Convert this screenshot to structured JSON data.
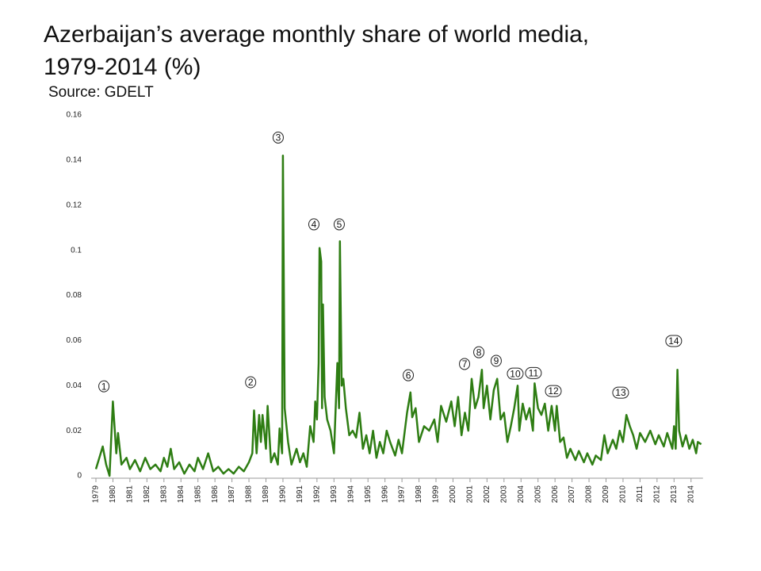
{
  "chart_data": {
    "type": "line",
    "title": "Azerbaijan’s average monthly share of world media,",
    "title_line2": "1979-2014 (%)",
    "subtitle": "Source: GDELT",
    "color": "#2e7d13",
    "xlim": [
      1979,
      2014.7
    ],
    "xticks": [
      1979,
      1980,
      1981,
      1982,
      1983,
      1984,
      1985,
      1986,
      1987,
      1988,
      1989,
      1990,
      1991,
      1992,
      1993,
      1994,
      1995,
      1996,
      1997,
      1998,
      1999,
      2000,
      2001,
      2002,
      2003,
      2004,
      2005,
      2006,
      2007,
      2008,
      2009,
      2010,
      2011,
      2012,
      2013,
      2014
    ],
    "ylim": [
      0,
      0.16
    ],
    "yticks": [
      0,
      0.02,
      0.04,
      0.06,
      0.08,
      0.1,
      0.12,
      0.14,
      0.16
    ],
    "grid": false,
    "x": [
      1979,
      1979.2,
      1979.4,
      1979.6,
      1979.8,
      1980.0,
      1980.2,
      1980.3,
      1980.5,
      1980.8,
      1981,
      1981.3,
      1981.6,
      1981.9,
      1982.2,
      1982.5,
      1982.8,
      1983.0,
      1983.2,
      1983.4,
      1983.6,
      1983.9,
      1984.2,
      1984.5,
      1984.8,
      1985.0,
      1985.3,
      1985.6,
      1985.9,
      1986.2,
      1986.5,
      1986.8,
      1987.1,
      1987.4,
      1987.7,
      1988.0,
      1988.2,
      1988.3,
      1988.45,
      1988.6,
      1988.7,
      1988.8,
      1989.0,
      1989.1,
      1989.3,
      1989.5,
      1989.7,
      1989.8,
      1989.95,
      1990.0,
      1990.1,
      1990.3,
      1990.5,
      1990.8,
      1991.0,
      1991.2,
      1991.4,
      1991.6,
      1991.8,
      1991.9,
      1992.0,
      1992.1,
      1992.15,
      1992.25,
      1992.3,
      1992.35,
      1992.45,
      1992.6,
      1992.8,
      1993.0,
      1993.2,
      1993.3,
      1993.35,
      1993.45,
      1993.55,
      1993.7,
      1993.9,
      1994.1,
      1994.3,
      1994.5,
      1994.7,
      1994.9,
      1995.1,
      1995.3,
      1995.5,
      1995.7,
      1995.9,
      1996.1,
      1996.3,
      1996.6,
      1996.8,
      1997.0,
      1997.3,
      1997.5,
      1997.6,
      1997.8,
      1998.0,
      1998.3,
      1998.6,
      1998.9,
      1999.1,
      1999.3,
      1999.6,
      1999.9,
      2000.1,
      2000.3,
      2000.5,
      2000.7,
      2000.9,
      2001.1,
      2001.3,
      2001.5,
      2001.7,
      2001.8,
      2002.0,
      2002.2,
      2002.4,
      2002.6,
      2002.8,
      2003.0,
      2003.2,
      2003.4,
      2003.6,
      2003.8,
      2003.9,
      2004.1,
      2004.3,
      2004.5,
      2004.7,
      2004.8,
      2005.0,
      2005.2,
      2005.4,
      2005.6,
      2005.8,
      2006.0,
      2006.1,
      2006.3,
      2006.5,
      2006.7,
      2006.9,
      2007.2,
      2007.4,
      2007.7,
      2007.9,
      2008.2,
      2008.4,
      2008.7,
      2008.9,
      2009.1,
      2009.4,
      2009.6,
      2009.8,
      2010.0,
      2010.2,
      2010.4,
      2010.6,
      2010.8,
      2011.0,
      2011.3,
      2011.6,
      2011.9,
      2012.1,
      2012.4,
      2012.6,
      2012.9,
      2013.0,
      2013.1,
      2013.2,
      2013.3,
      2013.5,
      2013.7,
      2013.9,
      2014.1,
      2014.3,
      2014.4,
      2014.6
    ],
    "values": [
      0.003,
      0.008,
      0.013,
      0.005,
      0.0,
      0.033,
      0.01,
      0.019,
      0.005,
      0.008,
      0.003,
      0.007,
      0.002,
      0.008,
      0.003,
      0.005,
      0.002,
      0.008,
      0.004,
      0.012,
      0.003,
      0.006,
      0.001,
      0.005,
      0.002,
      0.008,
      0.003,
      0.01,
      0.002,
      0.004,
      0.001,
      0.003,
      0.001,
      0.004,
      0.002,
      0.006,
      0.01,
      0.029,
      0.01,
      0.027,
      0.015,
      0.027,
      0.012,
      0.031,
      0.006,
      0.01,
      0.005,
      0.021,
      0.01,
      0.142,
      0.03,
      0.015,
      0.005,
      0.012,
      0.006,
      0.01,
      0.004,
      0.022,
      0.015,
      0.033,
      0.025,
      0.05,
      0.101,
      0.095,
      0.03,
      0.076,
      0.035,
      0.025,
      0.02,
      0.01,
      0.05,
      0.03,
      0.104,
      0.04,
      0.043,
      0.03,
      0.018,
      0.02,
      0.017,
      0.028,
      0.012,
      0.018,
      0.01,
      0.02,
      0.008,
      0.015,
      0.01,
      0.02,
      0.015,
      0.009,
      0.016,
      0.01,
      0.028,
      0.037,
      0.026,
      0.03,
      0.015,
      0.022,
      0.02,
      0.025,
      0.015,
      0.031,
      0.024,
      0.033,
      0.022,
      0.035,
      0.018,
      0.028,
      0.02,
      0.043,
      0.03,
      0.035,
      0.047,
      0.03,
      0.04,
      0.025,
      0.038,
      0.043,
      0.025,
      0.028,
      0.015,
      0.022,
      0.03,
      0.04,
      0.02,
      0.032,
      0.025,
      0.03,
      0.02,
      0.041,
      0.03,
      0.027,
      0.032,
      0.02,
      0.031,
      0.02,
      0.031,
      0.015,
      0.017,
      0.008,
      0.012,
      0.007,
      0.011,
      0.006,
      0.01,
      0.005,
      0.009,
      0.007,
      0.018,
      0.01,
      0.016,
      0.012,
      0.02,
      0.015,
      0.027,
      0.022,
      0.018,
      0.012,
      0.019,
      0.015,
      0.02,
      0.014,
      0.018,
      0.013,
      0.019,
      0.012,
      0.022,
      0.012,
      0.047,
      0.02,
      0.013,
      0.018,
      0.012,
      0.016,
      0.01,
      0.015,
      0.014
    ],
    "annotations": [
      {
        "label": "1",
        "x": 1979.47,
        "y": 0.0397
      },
      {
        "label": "2",
        "x": 1988.1,
        "y": 0.0415
      },
      {
        "label": "3",
        "x": 1989.72,
        "y": 0.15
      },
      {
        "label": "4",
        "x": 1991.82,
        "y": 0.1115
      },
      {
        "label": "5",
        "x": 1993.31,
        "y": 0.1115
      },
      {
        "label": "6",
        "x": 1997.37,
        "y": 0.0446
      },
      {
        "label": "7",
        "x": 2000.68,
        "y": 0.0496
      },
      {
        "label": "8",
        "x": 2001.52,
        "y": 0.0548
      },
      {
        "label": "9",
        "x": 2002.54,
        "y": 0.051
      },
      {
        "label": "10",
        "x": 2003.66,
        "y": 0.0453
      },
      {
        "label": "11",
        "x": 2004.73,
        "y": 0.0456
      },
      {
        "label": "12",
        "x": 2005.9,
        "y": 0.0376
      },
      {
        "label": "13",
        "x": 2009.86,
        "y": 0.0369
      },
      {
        "label": "14",
        "x": 2012.98,
        "y": 0.0598
      }
    ]
  }
}
